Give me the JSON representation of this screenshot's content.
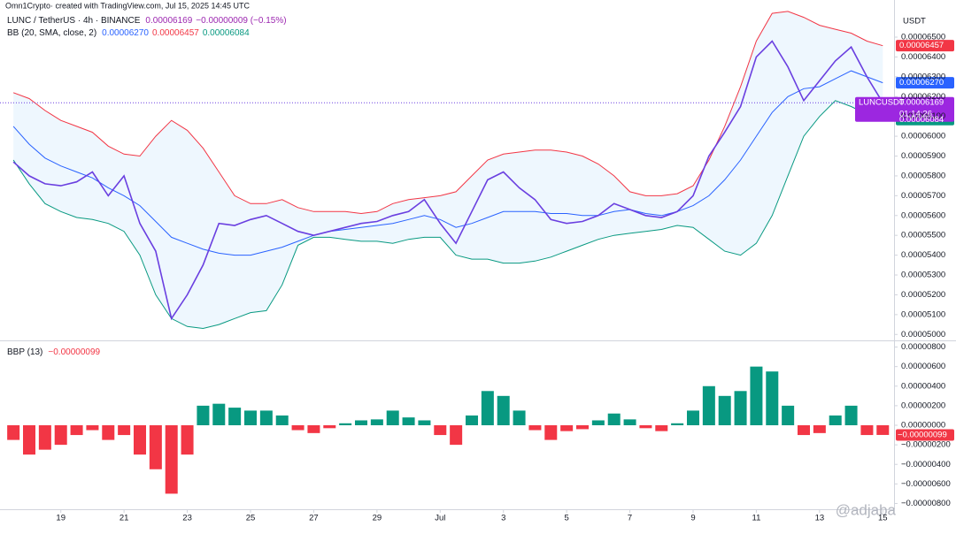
{
  "header": {
    "credit": "Omn1Crypto· created with TradingView.com, Jul 15, 2025 14:45 UTC"
  },
  "chart_data": [
    {
      "type": "line",
      "title": "LUNC / TetherUS · 4h · BINANCE",
      "last_label": "0.00006169",
      "change_label": "−0.00000009 (−0.15%)",
      "indicator": "BB (20, SMA, close, 2)",
      "indicator_values": [
        "0.00006270",
        "0.00006457",
        "0.00006084"
      ],
      "currency": "USDT",
      "symbol": "LUNCUSDT",
      "countdown": "01:14:26",
      "band_fill": "rgba(33,150,243,0.08)",
      "x": [
        17.5,
        18,
        18.5,
        19,
        19.5,
        20,
        20.5,
        21,
        21.5,
        22,
        22.5,
        23,
        23.5,
        24,
        24.5,
        25,
        25.5,
        26,
        26.5,
        27,
        27.5,
        28,
        28.5,
        29,
        29.5,
        30,
        30.5,
        31,
        31.5,
        32,
        32.5,
        33,
        33.5,
        34,
        34.5,
        35,
        35.5,
        36,
        36.5,
        37,
        37.5,
        38,
        38.5,
        39,
        39.5,
        40,
        40.5,
        41,
        41.5,
        42,
        42.5,
        43,
        43.5,
        44,
        44.5,
        45
      ],
      "xlim": [
        17.3,
        45.3
      ],
      "xticks": [
        19,
        21,
        23,
        25,
        27,
        29,
        {
          "value": 31,
          "label": "Jul"
        },
        {
          "value": 33,
          "label": "3"
        },
        {
          "value": 35,
          "label": "5"
        },
        {
          "value": 37,
          "label": "7"
        },
        {
          "value": 39,
          "label": "9"
        },
        {
          "value": 41,
          "label": "11"
        },
        {
          "value": 43,
          "label": "13"
        },
        {
          "value": 45,
          "label": "15"
        }
      ],
      "ylim": [
        4.97e-05,
        6.625e-05
      ],
      "yticks": [
        {
          "value": 5e-05,
          "label": "0.00005000"
        },
        {
          "value": 5.1e-05,
          "label": "0.00005100"
        },
        {
          "value": 5.2e-05,
          "label": "0.00005200"
        },
        {
          "value": 5.3e-05,
          "label": "0.00005300"
        },
        {
          "value": 5.4e-05,
          "label": "0.00005400"
        },
        {
          "value": 5.5e-05,
          "label": "0.00005500"
        },
        {
          "value": 5.6e-05,
          "label": "0.00005600"
        },
        {
          "value": 5.7e-05,
          "label": "0.00005700"
        },
        {
          "value": 5.8e-05,
          "label": "0.00005800"
        },
        {
          "value": 5.9e-05,
          "label": "0.00005900"
        },
        {
          "value": 6e-05,
          "label": "0.00006000"
        },
        {
          "value": 6.1e-05,
          "label": "0.00006100"
        },
        {
          "value": 6.2e-05,
          "label": "0.00006200"
        },
        {
          "value": 6.3e-05,
          "label": "0.00006300"
        },
        {
          "value": 6.4e-05,
          "label": "0.00006400"
        },
        {
          "value": 6.5e-05,
          "label": "0.00006500"
        }
      ],
      "grid": false,
      "series": [
        {
          "color": "#6a3fe0",
          "values": [
            5.87e-05,
            5.8e-05,
            5.76e-05,
            5.75e-05,
            5.77e-05,
            5.82e-05,
            5.7e-05,
            5.8e-05,
            5.56e-05,
            5.42e-05,
            5.08e-05,
            5.2e-05,
            5.35e-05,
            5.56e-05,
            5.55e-05,
            5.58e-05,
            5.6e-05,
            5.56e-05,
            5.52e-05,
            5.5e-05,
            5.52e-05,
            5.54e-05,
            5.56e-05,
            5.57e-05,
            5.6e-05,
            5.62e-05,
            5.68e-05,
            5.56e-05,
            5.46e-05,
            5.62e-05,
            5.78e-05,
            5.82e-05,
            5.74e-05,
            5.68e-05,
            5.58e-05,
            5.56e-05,
            5.57e-05,
            5.6e-05,
            5.66e-05,
            5.63e-05,
            5.6e-05,
            5.59e-05,
            5.62e-05,
            5.7e-05,
            5.9e-05,
            6.02e-05,
            6.15e-05,
            6.4e-05,
            6.48e-05,
            6.35e-05,
            6.18e-05,
            6.28e-05,
            6.38e-05,
            6.45e-05,
            6.3e-05,
            6.169e-05
          ]
        },
        {
          "color": "#f23645",
          "values": [
            6.22e-05,
            6.19e-05,
            6.13e-05,
            6.08e-05,
            6.05e-05,
            6.02e-05,
            5.95e-05,
            5.91e-05,
            5.9e-05,
            6e-05,
            6.08e-05,
            6.03e-05,
            5.94e-05,
            5.82e-05,
            5.7e-05,
            5.66e-05,
            5.66e-05,
            5.68e-05,
            5.64e-05,
            5.62e-05,
            5.62e-05,
            5.62e-05,
            5.61e-05,
            5.62e-05,
            5.66e-05,
            5.68e-05,
            5.69e-05,
            5.7e-05,
            5.72e-05,
            5.8e-05,
            5.88e-05,
            5.91e-05,
            5.92e-05,
            5.93e-05,
            5.93e-05,
            5.92e-05,
            5.9e-05,
            5.86e-05,
            5.8e-05,
            5.72e-05,
            5.7e-05,
            5.7e-05,
            5.71e-05,
            5.75e-05,
            5.88e-05,
            6.05e-05,
            6.25e-05,
            6.48e-05,
            6.62e-05,
            6.63e-05,
            6.6e-05,
            6.56e-05,
            6.54e-05,
            6.52e-05,
            6.48e-05,
            6.457e-05
          ]
        },
        {
          "color": "#2962ff",
          "values": [
            6.05e-05,
            5.96e-05,
            5.89e-05,
            5.85e-05,
            5.82e-05,
            5.79e-05,
            5.74e-05,
            5.7e-05,
            5.65e-05,
            5.57e-05,
            5.49e-05,
            5.46e-05,
            5.43e-05,
            5.41e-05,
            5.4e-05,
            5.4e-05,
            5.42e-05,
            5.44e-05,
            5.47e-05,
            5.5e-05,
            5.52e-05,
            5.53e-05,
            5.54e-05,
            5.55e-05,
            5.56e-05,
            5.58e-05,
            5.6e-05,
            5.58e-05,
            5.54e-05,
            5.56e-05,
            5.59e-05,
            5.62e-05,
            5.62e-05,
            5.62e-05,
            5.61e-05,
            5.61e-05,
            5.6e-05,
            5.6e-05,
            5.62e-05,
            5.63e-05,
            5.61e-05,
            5.6e-05,
            5.62e-05,
            5.65e-05,
            5.7e-05,
            5.78e-05,
            5.88e-05,
            6e-05,
            6.12e-05,
            6.2e-05,
            6.24e-05,
            6.25e-05,
            6.29e-05,
            6.33e-05,
            6.3e-05,
            6.27e-05
          ]
        },
        {
          "color": "#089981",
          "values": [
            5.88e-05,
            5.76e-05,
            5.66e-05,
            5.62e-05,
            5.59e-05,
            5.58e-05,
            5.56e-05,
            5.52e-05,
            5.4e-05,
            5.2e-05,
            5.08e-05,
            5.04e-05,
            5.03e-05,
            5.05e-05,
            5.08e-05,
            5.11e-05,
            5.12e-05,
            5.25e-05,
            5.45e-05,
            5.49e-05,
            5.49e-05,
            5.48e-05,
            5.47e-05,
            5.47e-05,
            5.46e-05,
            5.48e-05,
            5.49e-05,
            5.49e-05,
            5.4e-05,
            5.38e-05,
            5.38e-05,
            5.36e-05,
            5.36e-05,
            5.37e-05,
            5.39e-05,
            5.42e-05,
            5.45e-05,
            5.48e-05,
            5.5e-05,
            5.51e-05,
            5.52e-05,
            5.53e-05,
            5.55e-05,
            5.54e-05,
            5.48e-05,
            5.42e-05,
            5.4e-05,
            5.46e-05,
            5.6e-05,
            5.8e-05,
            6e-05,
            6.1e-05,
            6.18e-05,
            6.15e-05,
            6.11e-05,
            6.084e-05
          ]
        }
      ]
    },
    {
      "type": "bar",
      "title": "BBP (13)",
      "last_label": "−0.00000099",
      "colors": {
        "positive": "#089981",
        "negative": "#f23645"
      },
      "x": [
        17.5,
        18,
        18.5,
        19,
        19.5,
        20,
        20.5,
        21,
        21.5,
        22,
        22.5,
        23,
        23.5,
        24,
        24.5,
        25,
        25.5,
        26,
        26.5,
        27,
        27.5,
        28,
        28.5,
        29,
        29.5,
        30,
        30.5,
        31,
        31.5,
        32,
        32.5,
        33,
        33.5,
        34,
        34.5,
        35,
        35.5,
        36,
        36.5,
        37,
        37.5,
        38,
        38.5,
        39,
        39.5,
        40,
        40.5,
        41,
        41.5,
        42,
        42.5,
        43,
        43.5,
        44,
        44.5,
        45
      ],
      "xlim": [
        17.3,
        45.3
      ],
      "values": [
        -1.5e-06,
        -3e-06,
        -2.5e-06,
        -2e-06,
        -1e-06,
        -5e-07,
        -1.5e-06,
        -1e-06,
        -3e-06,
        -4.5e-06,
        -7e-06,
        -3e-06,
        2e-06,
        2.2e-06,
        1.8e-06,
        1.5e-06,
        1.5e-06,
        1e-06,
        -5e-07,
        -8e-07,
        -3e-07,
        2e-07,
        5e-07,
        6e-07,
        1.5e-06,
        8e-07,
        5e-07,
        -1e-06,
        -2e-06,
        1e-06,
        3.5e-06,
        3e-06,
        1.5e-06,
        -5e-07,
        -1.5e-06,
        -6e-07,
        -4e-07,
        5e-07,
        1.2e-06,
        6e-07,
        -3e-07,
        -6e-07,
        2e-07,
        1.5e-06,
        4e-06,
        3e-06,
        3.5e-06,
        6e-06,
        5.5e-06,
        2e-06,
        -1e-06,
        -8e-07,
        1e-06,
        2e-06,
        -1e-06,
        -9.9e-07
      ],
      "ylim": [
        -8.5e-06,
        8.5e-06
      ],
      "yticks": [
        {
          "value": 8e-06,
          "label": "0.00000800"
        },
        {
          "value": 6e-06,
          "label": "0.00000600"
        },
        {
          "value": 4e-06,
          "label": "0.00000400"
        },
        {
          "value": 2e-06,
          "label": "0.00000200"
        },
        {
          "value": 0,
          "label": "0.00000000"
        },
        {
          "value": -2e-06,
          "label": "−0.00000200"
        },
        {
          "value": -4e-06,
          "label": "−0.00000400"
        },
        {
          "value": -6e-06,
          "label": "−0.00000600"
        },
        {
          "value": -8e-06,
          "label": "−0.00000800"
        }
      ]
    }
  ],
  "watermark": "@adjaba"
}
